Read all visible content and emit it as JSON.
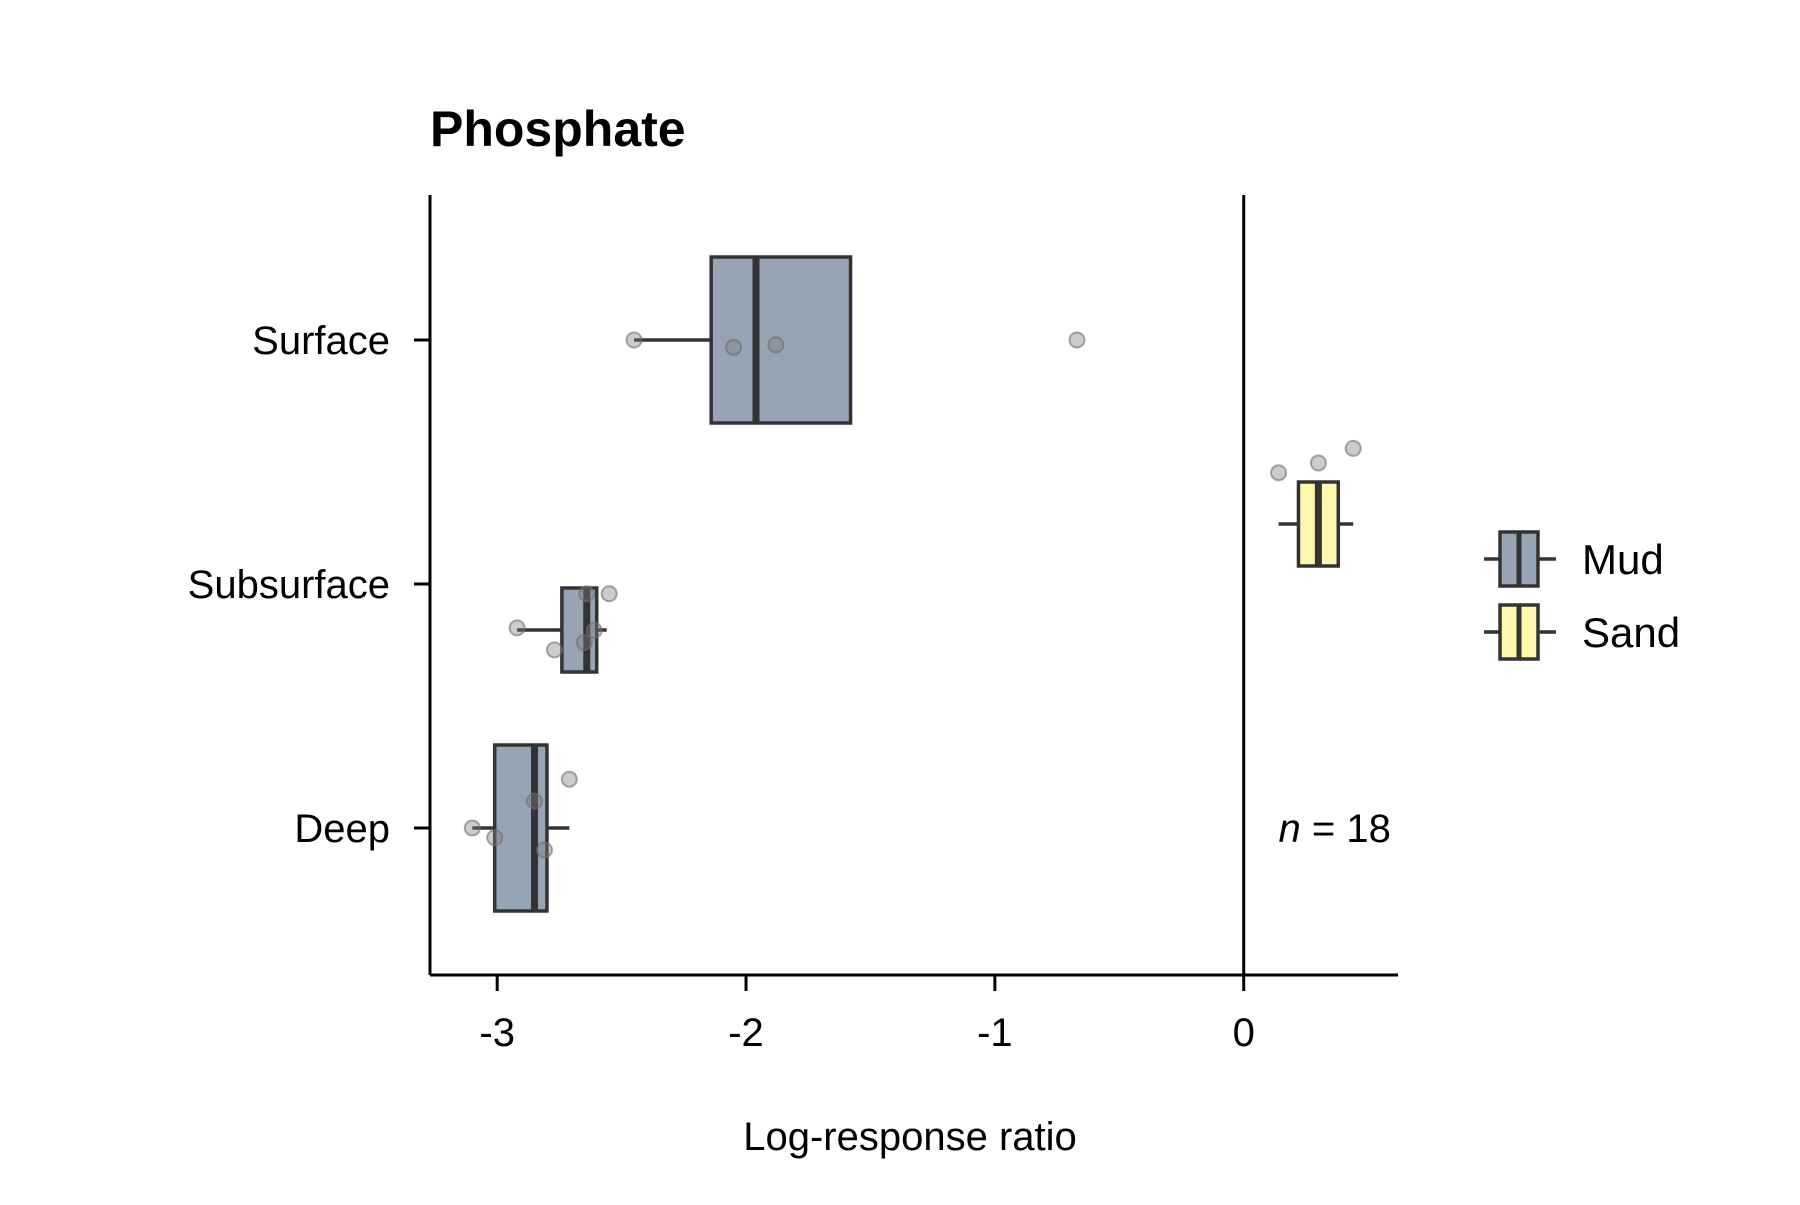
{
  "chart_data": {
    "type": "box",
    "orientation": "horizontal",
    "title": "Phosphate",
    "xlabel": "Log-response ratio",
    "ylabel": "",
    "categories": [
      "Surface",
      "Subsurface",
      "Deep"
    ],
    "x_ticks": [
      -3,
      -2,
      -1,
      0
    ],
    "x_tick_labels": [
      "-3",
      "-2",
      "-1",
      "0"
    ],
    "xlim": [
      -3.27,
      0.62
    ],
    "reference_line_x": 0,
    "grid": false,
    "legend_position": "right",
    "annotation": {
      "italic": "n",
      "text": " = 18"
    },
    "series": [
      {
        "name": "Mud",
        "color": "#97a4b5",
        "boxes": [
          {
            "category": "Surface",
            "q1": -2.14,
            "median": -1.96,
            "q3": -1.58,
            "whisker_low": -2.45,
            "whisker_high": -1.58,
            "points": [
              [
                -2.45,
                0.0
              ],
              [
                -2.05,
                -0.03
              ],
              [
                -1.88,
                -0.02
              ],
              [
                -0.67,
                0.0
              ]
            ]
          },
          {
            "category": "Subsurface",
            "q1": -2.74,
            "median": -2.64,
            "q3": -2.6,
            "whisker_low": -2.92,
            "whisker_high": -2.56,
            "points": [
              [
                -2.92,
                -0.18
              ],
              [
                -2.77,
                -0.27
              ],
              [
                -2.65,
                -0.24
              ],
              [
                -2.61,
                -0.19
              ],
              [
                -2.64,
                -0.04
              ],
              [
                -2.55,
                -0.04
              ]
            ]
          },
          {
            "category": "Deep",
            "q1": -3.01,
            "median": -2.85,
            "q3": -2.8,
            "whisker_low": -3.1,
            "whisker_high": -2.71,
            "points": [
              [
                -3.1,
                0.0
              ],
              [
                -3.01,
                -0.04
              ],
              [
                -2.85,
                0.11
              ],
              [
                -2.81,
                -0.09
              ],
              [
                -2.71,
                0.2
              ]
            ]
          }
        ]
      },
      {
        "name": "Sand",
        "color": "#fff7ad",
        "boxes": [
          {
            "category": "Subsurface",
            "q1": 0.22,
            "median": 0.3,
            "q3": 0.38,
            "whisker_low": 0.14,
            "whisker_high": 0.44,
            "points": [
              [
                0.14,
                0.21
              ],
              [
                0.3,
                0.25
              ],
              [
                0.44,
                0.31
              ]
            ]
          }
        ]
      }
    ]
  }
}
